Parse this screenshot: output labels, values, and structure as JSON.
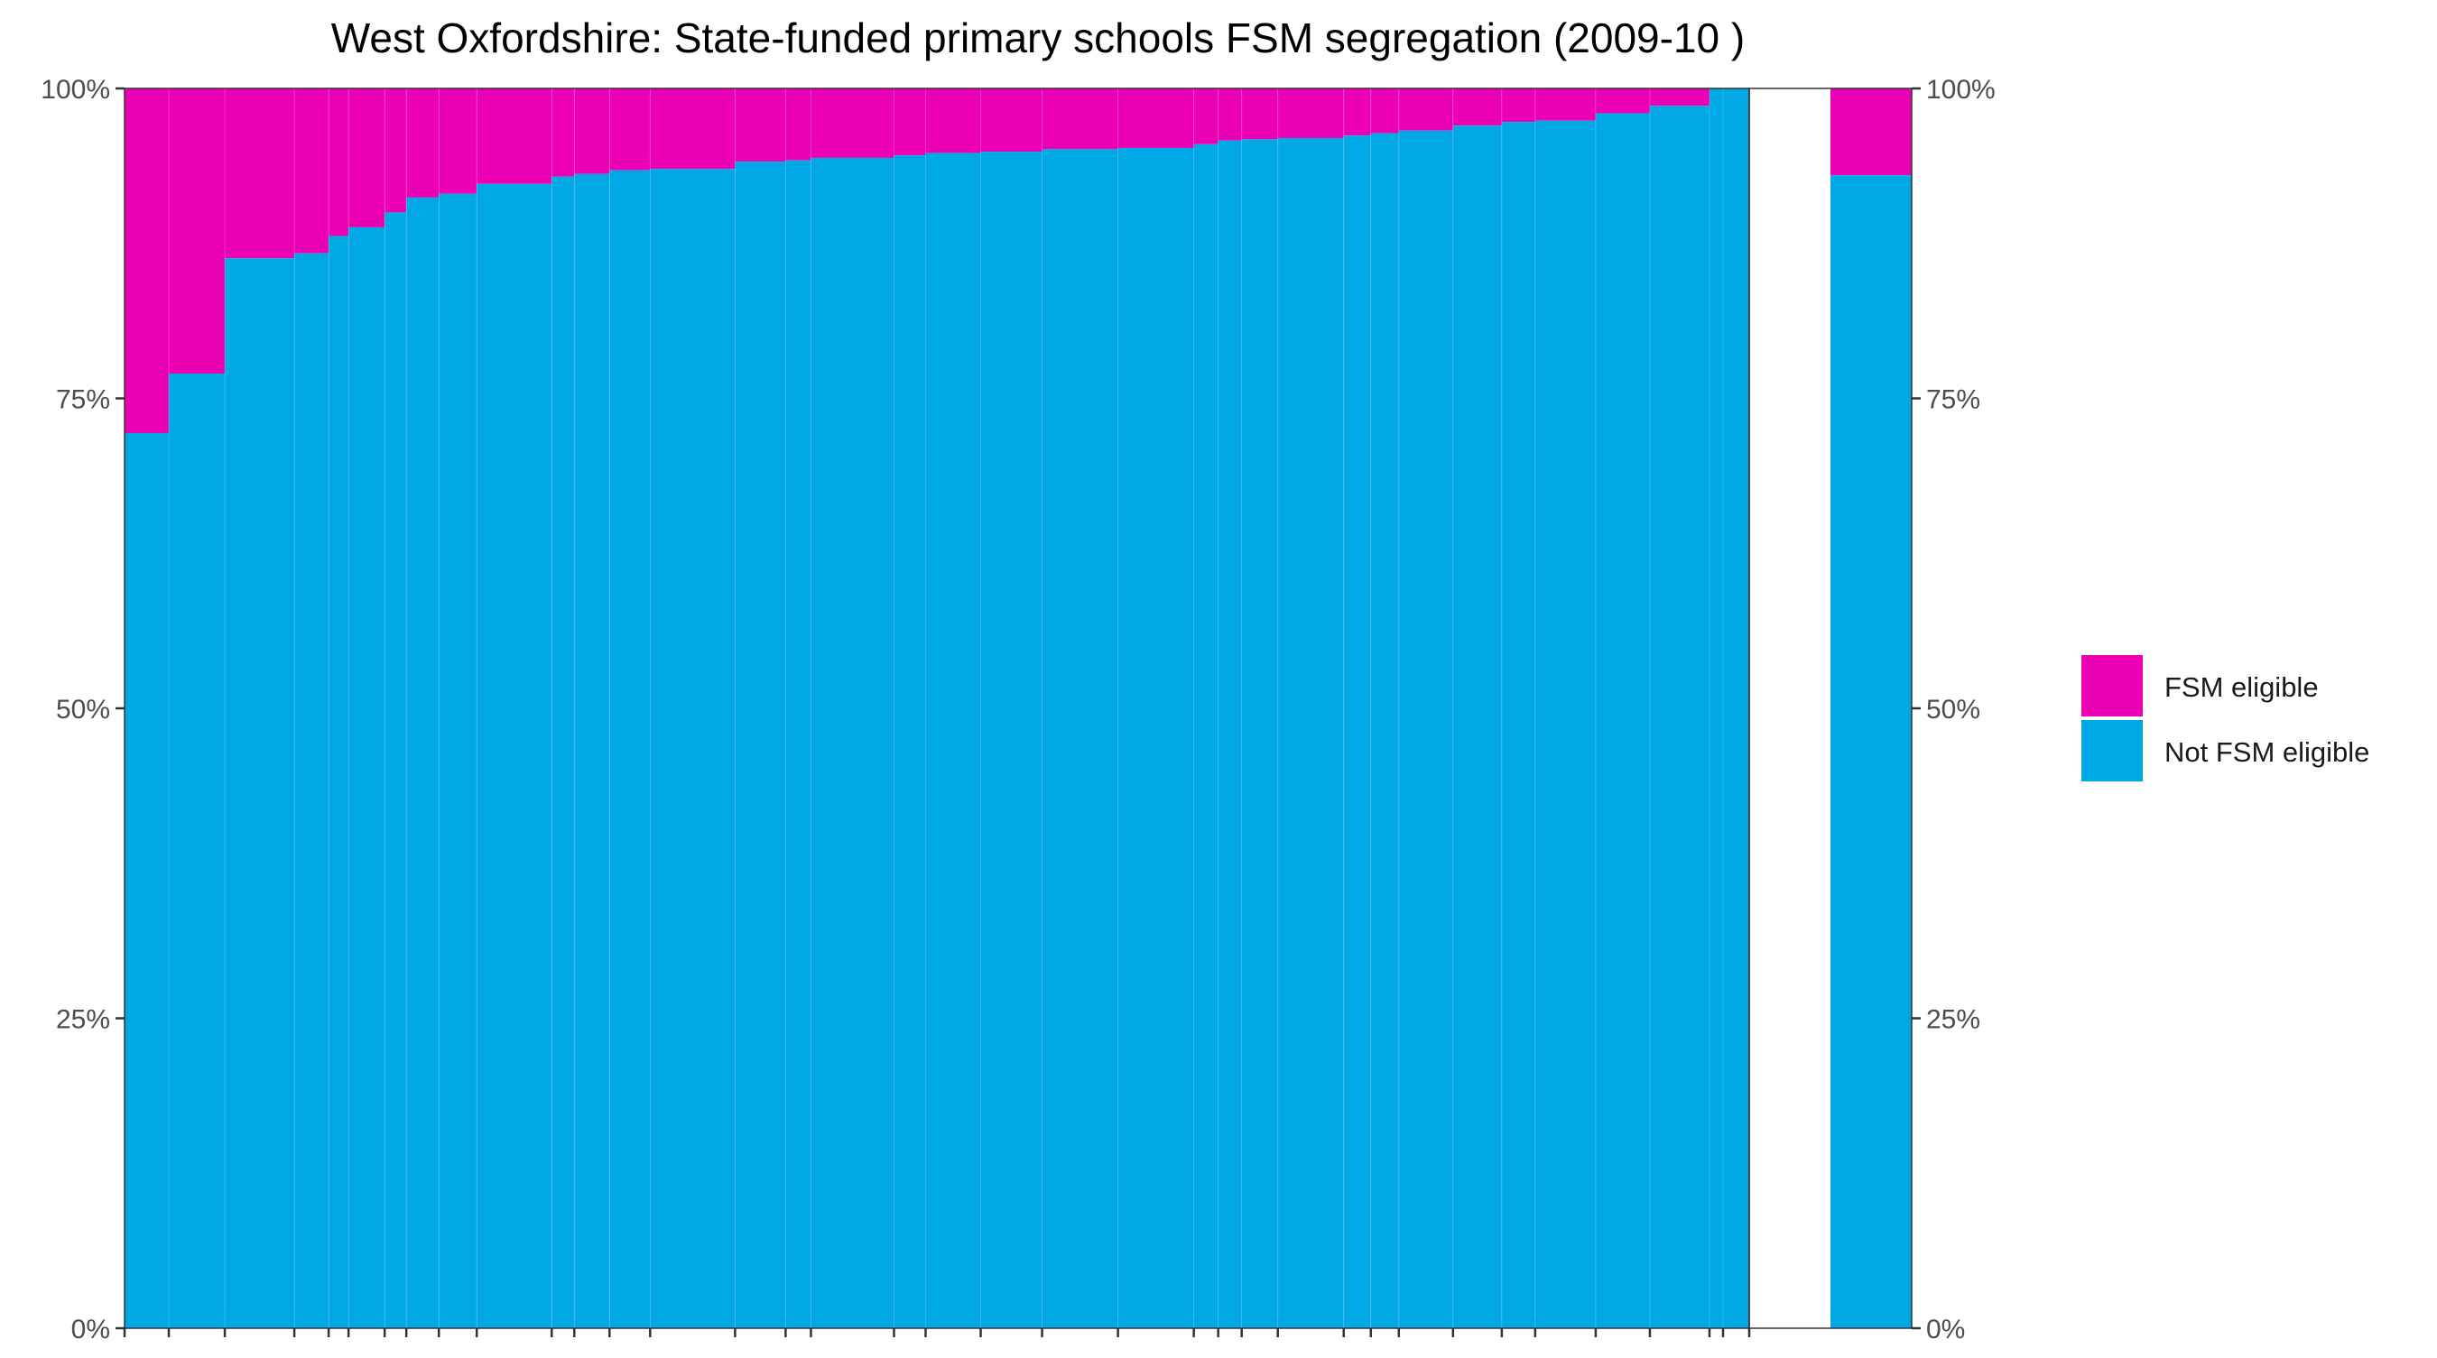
{
  "chart_data": {
    "type": "bar",
    "stacked": true,
    "variable_width": true,
    "title": "West Oxfordshire: State-funded primary schools FSM segregation (2009-10 )",
    "xlabel": "",
    "ylabel": "",
    "ylim": [
      0,
      1
    ],
    "y_ticks": [
      "0%",
      "25%",
      "50%",
      "75%",
      "100%"
    ],
    "grid": false,
    "legend_position": "right",
    "series": [
      {
        "name": "FSM eligible",
        "color": "#EC00B4"
      },
      {
        "name": "Not FSM eligible",
        "color": "#00A8E6"
      }
    ],
    "schools": [
      {
        "width": 49,
        "not_fsm_share": 0.722
      },
      {
        "width": 62,
        "not_fsm_share": 0.77
      },
      {
        "width": 77,
        "not_fsm_share": 0.863
      },
      {
        "width": 38,
        "not_fsm_share": 0.867
      },
      {
        "width": 22,
        "not_fsm_share": 0.881
      },
      {
        "width": 40,
        "not_fsm_share": 0.888
      },
      {
        "width": 24,
        "not_fsm_share": 0.9
      },
      {
        "width": 36,
        "not_fsm_share": 0.912
      },
      {
        "width": 42,
        "not_fsm_share": 0.915
      },
      {
        "width": 83,
        "not_fsm_share": 0.923
      },
      {
        "width": 25,
        "not_fsm_share": 0.929
      },
      {
        "width": 39,
        "not_fsm_share": 0.931
      },
      {
        "width": 45,
        "not_fsm_share": 0.934
      },
      {
        "width": 94,
        "not_fsm_share": 0.935
      },
      {
        "width": 56,
        "not_fsm_share": 0.941
      },
      {
        "width": 28,
        "not_fsm_share": 0.942
      },
      {
        "width": 92,
        "not_fsm_share": 0.944
      },
      {
        "width": 35,
        "not_fsm_share": 0.946
      },
      {
        "width": 61,
        "not_fsm_share": 0.948
      },
      {
        "width": 68,
        "not_fsm_share": 0.949
      },
      {
        "width": 84,
        "not_fsm_share": 0.951
      },
      {
        "width": 84,
        "not_fsm_share": 0.952
      },
      {
        "width": 27,
        "not_fsm_share": 0.955
      },
      {
        "width": 26,
        "not_fsm_share": 0.958
      },
      {
        "width": 40,
        "not_fsm_share": 0.959
      },
      {
        "width": 73,
        "not_fsm_share": 0.96
      },
      {
        "width": 30,
        "not_fsm_share": 0.962
      },
      {
        "width": 31,
        "not_fsm_share": 0.964
      },
      {
        "width": 60,
        "not_fsm_share": 0.966
      },
      {
        "width": 54,
        "not_fsm_share": 0.97
      },
      {
        "width": 37,
        "not_fsm_share": 0.973
      },
      {
        "width": 67,
        "not_fsm_share": 0.974
      },
      {
        "width": 60,
        "not_fsm_share": 0.98
      },
      {
        "width": 66,
        "not_fsm_share": 0.986
      },
      {
        "width": 15,
        "not_fsm_share": 1.0
      },
      {
        "width": 29,
        "not_fsm_share": 1.0
      }
    ],
    "overall": {
      "not_fsm_share": 0.93
    }
  }
}
